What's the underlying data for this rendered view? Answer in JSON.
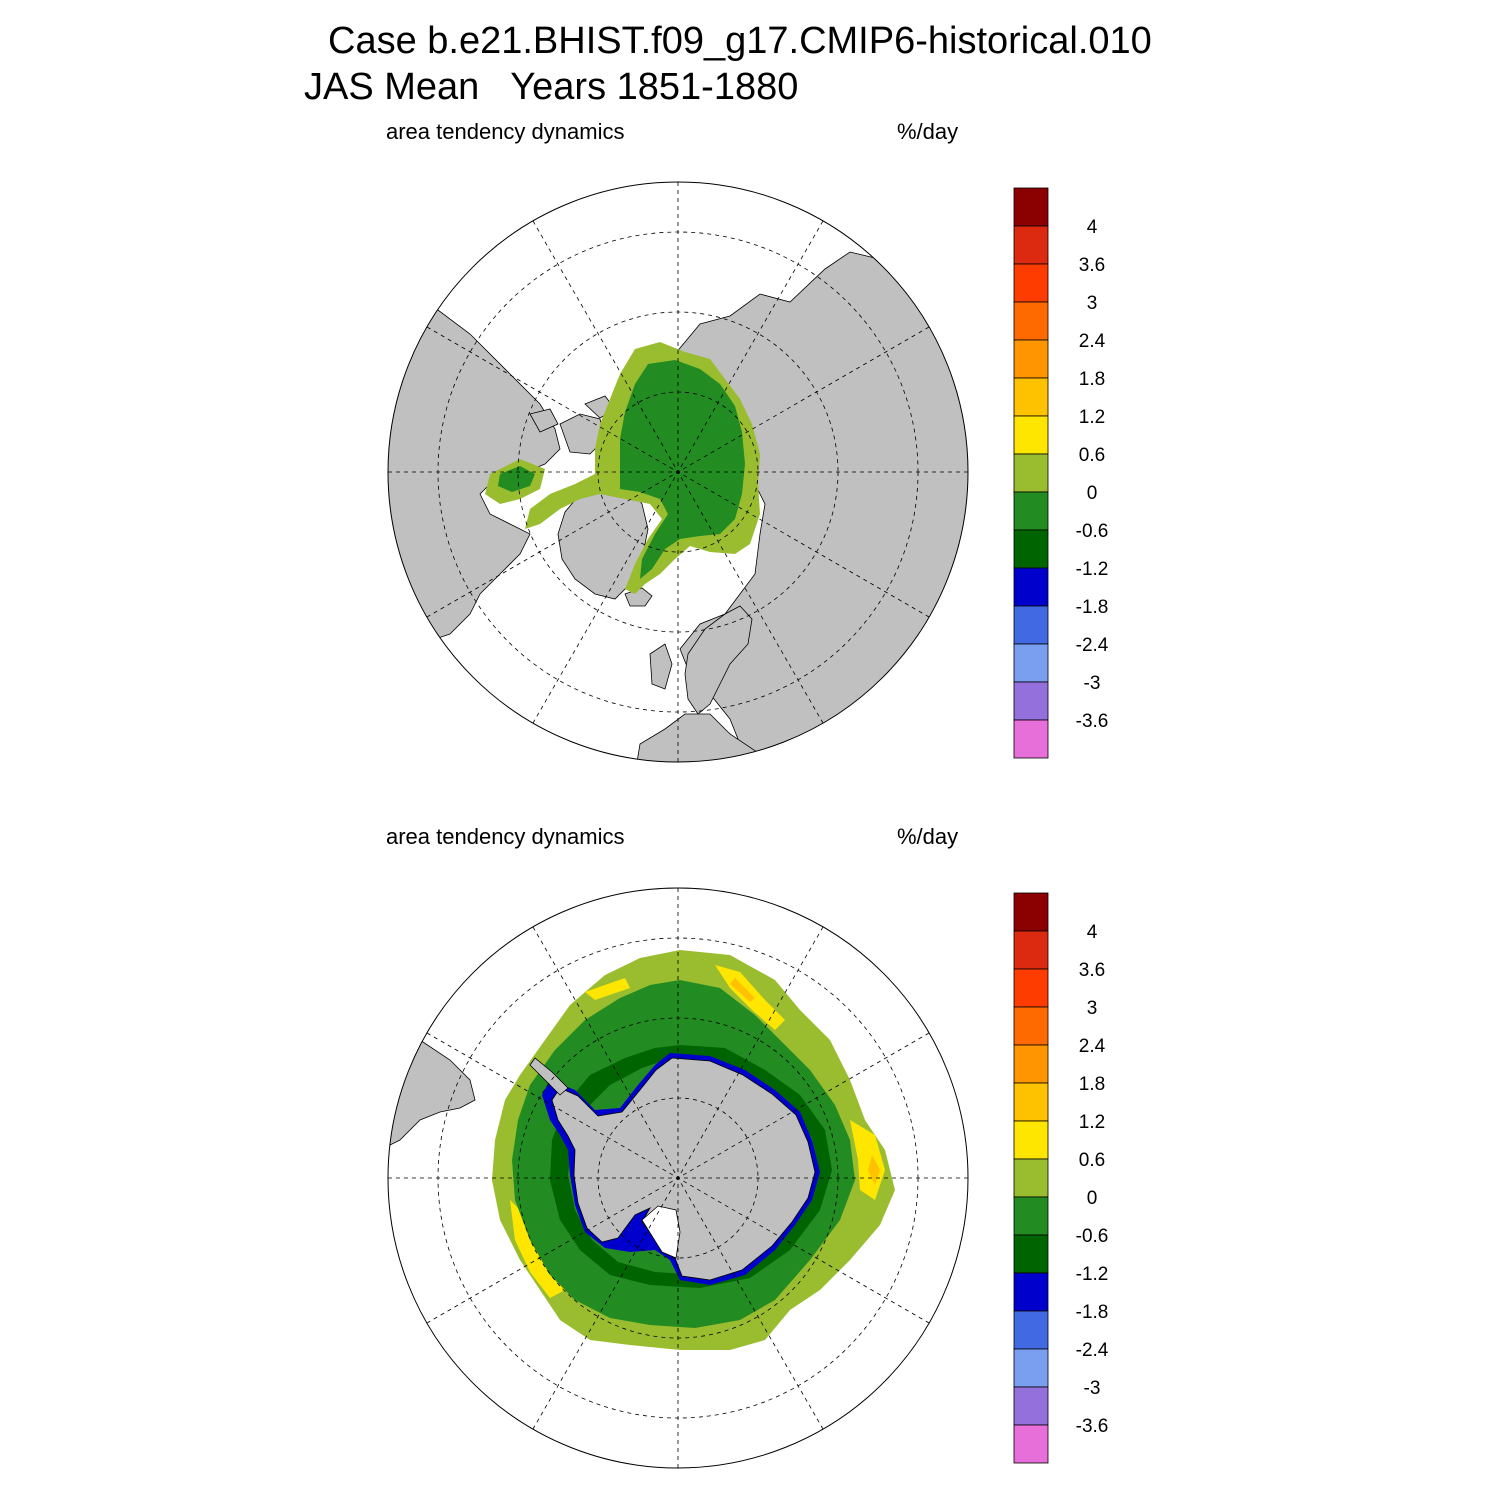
{
  "title": {
    "line1": "Case b.e21.BHIST.f09_g17.CMIP6-historical.010",
    "line2": "JAS Mean   Years 1851-1880"
  },
  "panels": [
    {
      "hemisphere": "north",
      "left_label": "area tendency dynamics",
      "right_label": "%/day"
    },
    {
      "hemisphere": "south",
      "left_label": "area tendency dynamics",
      "right_label": "%/day"
    }
  ],
  "colorbar": {
    "tick_labels": [
      "4",
      "3.6",
      "3",
      "2.4",
      "1.8",
      "1.2",
      "0.6",
      "0",
      "-0.6",
      "-1.2",
      "-1.8",
      "-2.4",
      "-3",
      "-3.6"
    ],
    "colors": [
      "#8b0000",
      "#dc2a10",
      "#ff3c00",
      "#ff6a00",
      "#ff9500",
      "#ffc200",
      "#ffe600",
      "#9abd30",
      "#228b22",
      "#006400",
      "#0000cd",
      "#4169e1",
      "#7b9ff0",
      "#9370db",
      "#e76fd9"
    ]
  },
  "colors": {
    "land": "#c0c0c0",
    "ocean": "#ffffff",
    "outline": "#000000"
  }
}
